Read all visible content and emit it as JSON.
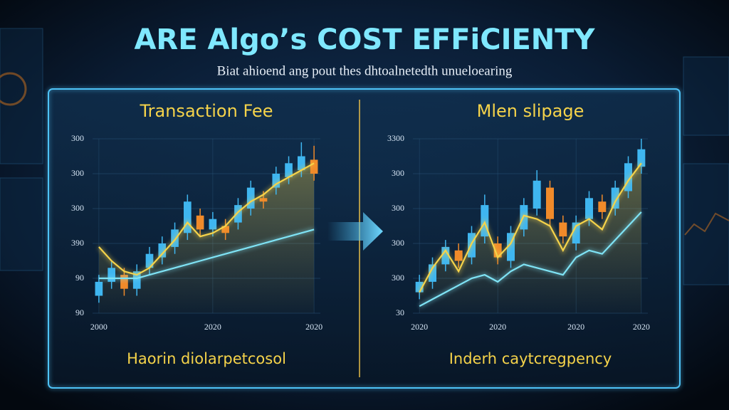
{
  "header": {
    "title": "ARE Algo’s COST EFFiCIENTY",
    "subtitle": "Biat ahioend ang pout thes dhtoalnetedth unueloearing"
  },
  "chart_data": [
    {
      "type": "candlestick",
      "title": "Transaction Fee",
      "caption": "Haorin diolarpetcosol",
      "x": [
        0,
        1,
        2,
        3,
        4,
        5,
        6,
        7,
        8,
        9,
        10,
        11,
        12,
        13,
        14,
        15,
        16,
        17
      ],
      "open": [
        0.5,
        0.9,
        1.1,
        0.7,
        1.3,
        1.6,
        1.9,
        2.3,
        2.8,
        2.4,
        2.5,
        2.6,
        3.0,
        3.3,
        3.6,
        3.9,
        4.1,
        4.4
      ],
      "close": [
        0.9,
        1.3,
        0.7,
        1.2,
        1.7,
        2.0,
        2.4,
        3.2,
        2.4,
        2.7,
        2.3,
        3.1,
        3.6,
        3.2,
        4.0,
        4.3,
        4.5,
        4.0
      ],
      "high": [
        1.1,
        1.5,
        1.3,
        1.4,
        1.9,
        2.2,
        2.6,
        3.4,
        3.0,
        2.9,
        2.7,
        3.3,
        3.8,
        3.5,
        4.2,
        4.5,
        4.9,
        4.8
      ],
      "low": [
        0.3,
        0.7,
        0.5,
        0.5,
        1.1,
        1.4,
        1.7,
        2.1,
        2.2,
        2.2,
        2.1,
        2.4,
        2.8,
        3.0,
        3.4,
        3.7,
        3.9,
        3.8
      ],
      "up_color": "#3fb6f0",
      "down_color": "#f08a2a",
      "lines": [
        {
          "color": "#f5d34a",
          "values": [
            1.9,
            1.5,
            1.2,
            1.1,
            1.3,
            1.7,
            2.1,
            2.6,
            2.2,
            2.3,
            2.5,
            2.9,
            3.2,
            3.4,
            3.7,
            3.9,
            4.1,
            4.3
          ]
        },
        {
          "color": "#7fe3f5",
          "values": [
            1.0,
            1.0,
            1.0,
            1.0,
            1.1,
            1.2,
            1.3,
            1.4,
            1.5,
            1.6,
            1.7,
            1.8,
            1.9,
            2.0,
            2.1,
            2.2,
            2.3,
            2.4
          ]
        }
      ],
      "xlim": [
        -0.5,
        17.5
      ],
      "xticks": [
        {
          "value": 0,
          "label": "2000"
        },
        {
          "value": 9,
          "label": "2020"
        },
        {
          "value": 17,
          "label": "2020"
        }
      ],
      "ylim": [
        0,
        5
      ],
      "yticks": [
        {
          "value": 0,
          "label": "90"
        },
        {
          "value": 1,
          "label": "90"
        },
        {
          "value": 2,
          "label": "390"
        },
        {
          "value": 3,
          "label": "300"
        },
        {
          "value": 4,
          "label": "300"
        },
        {
          "value": 5,
          "label": "300"
        }
      ],
      "grid": true
    },
    {
      "type": "candlestick",
      "title": "Mlen slipage",
      "caption": "Inderh caytcregpency",
      "x": [
        0,
        1,
        2,
        3,
        4,
        5,
        6,
        7,
        8,
        9,
        10,
        11,
        12,
        13,
        14,
        15,
        16,
        17
      ],
      "open": [
        0.6,
        0.9,
        1.4,
        1.8,
        1.6,
        2.2,
        2.0,
        1.5,
        2.4,
        3.0,
        3.6,
        2.6,
        2.0,
        2.7,
        3.2,
        3.0,
        3.5,
        4.2
      ],
      "close": [
        0.9,
        1.4,
        1.9,
        1.5,
        2.3,
        3.1,
        1.6,
        2.3,
        3.1,
        3.8,
        2.7,
        2.2,
        2.6,
        3.3,
        2.9,
        3.6,
        4.3,
        4.7
      ],
      "high": [
        1.1,
        1.6,
        2.1,
        2.0,
        2.5,
        3.4,
        2.2,
        2.5,
        3.3,
        4.1,
        3.8,
        2.8,
        2.8,
        3.5,
        3.4,
        3.8,
        4.5,
        5.0
      ],
      "low": [
        0.4,
        0.7,
        1.2,
        1.3,
        1.4,
        2.0,
        1.4,
        1.3,
        2.2,
        2.8,
        2.5,
        2.0,
        1.8,
        2.5,
        2.7,
        2.8,
        3.3,
        4.0
      ],
      "up_color": "#3fb6f0",
      "down_color": "#f08a2a",
      "lines": [
        {
          "color": "#f5d34a",
          "values": [
            0.6,
            1.3,
            1.8,
            1.2,
            2.0,
            2.6,
            1.6,
            2.0,
            2.8,
            2.7,
            2.5,
            1.8,
            2.5,
            2.7,
            2.4,
            3.2,
            3.8,
            4.3
          ]
        },
        {
          "color": "#7fe3f5",
          "values": [
            0.2,
            0.4,
            0.6,
            0.8,
            1.0,
            1.1,
            0.9,
            1.2,
            1.4,
            1.3,
            1.2,
            1.1,
            1.6,
            1.8,
            1.7,
            2.1,
            2.5,
            2.9
          ]
        }
      ],
      "xlim": [
        -0.5,
        17.5
      ],
      "xticks": [
        {
          "value": 0,
          "label": "2020"
        },
        {
          "value": 6,
          "label": "2020"
        },
        {
          "value": 12,
          "label": "2020"
        },
        {
          "value": 17,
          "label": "2020"
        }
      ],
      "ylim": [
        0,
        5
      ],
      "yticks": [
        {
          "value": 0,
          "label": "30"
        },
        {
          "value": 1,
          "label": "300"
        },
        {
          "value": 2,
          "label": "300"
        },
        {
          "value": 3,
          "label": "300"
        },
        {
          "value": 4,
          "label": "300"
        },
        {
          "value": 5,
          "label": "3300"
        }
      ],
      "grid": true
    }
  ]
}
